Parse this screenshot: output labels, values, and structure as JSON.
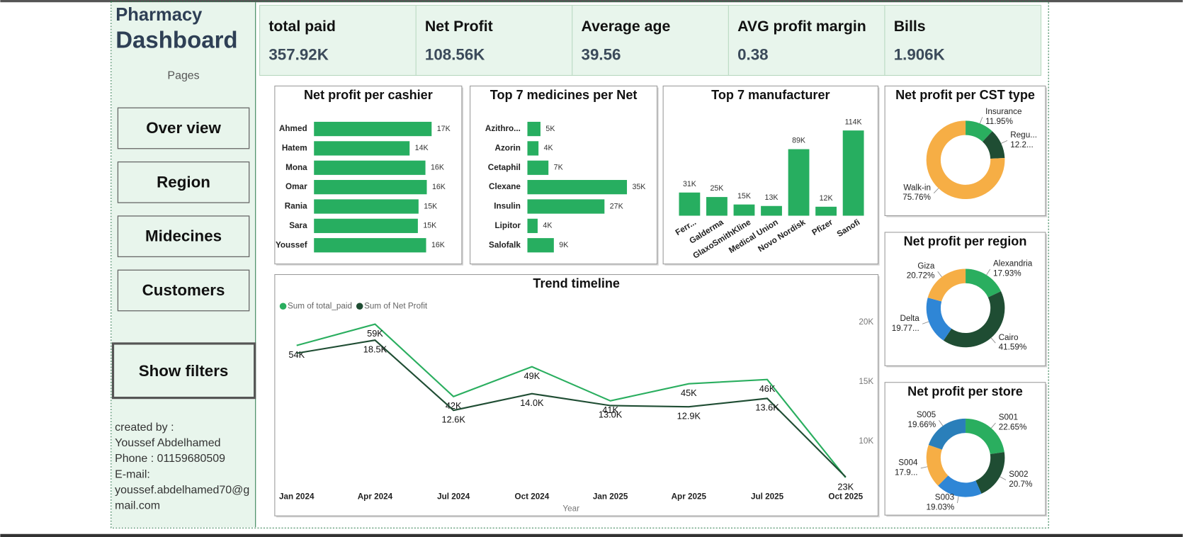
{
  "sidebar": {
    "title_line1": "Pharmacy",
    "title_line2": "Dashboard",
    "pages_label": "Pages",
    "pages": [
      "Over view",
      "Region",
      "Midecines",
      "Customers"
    ],
    "filters_button": "Show filters",
    "credits": [
      "created by :",
      "Youssef Abdelhamed",
      "Phone : 01159680509",
      "E-mail:",
      "youssef.abdelhamed70@g",
      "mail.com"
    ]
  },
  "kpis": [
    {
      "label": "total paid",
      "value": "357.92K"
    },
    {
      "label": "Net Profit",
      "value": "108.56K"
    },
    {
      "label": "Average age",
      "value": "39.56"
    },
    {
      "label": "AVG profit margin",
      "value": "0.38"
    },
    {
      "label": "Bills",
      "value": "1.906K"
    }
  ],
  "chart_data": [
    {
      "type": "bar",
      "orientation": "horizontal",
      "title": "Net profit per cashier",
      "color": "#27ae60",
      "categories": [
        "Ahmed",
        "Hatem",
        "Mona",
        "Omar",
        "Rania",
        "Sara",
        "Youssef"
      ],
      "values": [
        17100,
        13900,
        16200,
        16400,
        15200,
        15100,
        16300
      ],
      "value_labels": [
        "17K",
        "14K",
        "16K",
        "16K",
        "15K",
        "15K",
        "16K"
      ]
    },
    {
      "type": "bar",
      "orientation": "horizontal",
      "title": "Top 7 medicines per Net",
      "color": "#27ae60",
      "categories": [
        "Azithro...",
        "Azorin",
        "Cetaphil",
        "Clexane",
        "Insulin",
        "Lipitor",
        "Salofalk"
      ],
      "values": [
        4600,
        3900,
        7400,
        35000,
        27100,
        3600,
        9300
      ],
      "value_labels": [
        "5K",
        "4K",
        "7K",
        "35K",
        "27K",
        "4K",
        "9K"
      ]
    },
    {
      "type": "bar",
      "orientation": "vertical",
      "title": "Top 7 manufacturer",
      "color": "#27ae60",
      "categories": [
        "Ferr...",
        "Galderma",
        "GlaxoSmithKline",
        "Medical Union",
        "Novo Nordisk",
        "Pfizer",
        "Sanofi"
      ],
      "values": [
        31000,
        25000,
        15000,
        13000,
        89000,
        12000,
        114000
      ],
      "value_labels": [
        "31K",
        "25K",
        "15K",
        "13K",
        "89K",
        "12K",
        "114K"
      ]
    },
    {
      "type": "donut",
      "title": "Net profit per CST type",
      "categories": [
        "Insurance",
        "Regu...",
        "Walk-in"
      ],
      "values": [
        11.95,
        12.29,
        75.76
      ],
      "value_labels": [
        "11.95%",
        "12.2...",
        "75.76%"
      ],
      "colors": [
        "#2aae5f",
        "#1f4d33",
        "#f6ae45"
      ]
    },
    {
      "type": "donut",
      "title": "Net profit per region",
      "categories": [
        "Alexandria",
        "Cairo",
        "Delta",
        "Giza"
      ],
      "values": [
        17.93,
        41.59,
        19.77,
        20.72
      ],
      "value_labels": [
        "17.93%",
        "41.59%",
        "19.77...",
        "20.72%"
      ],
      "colors": [
        "#2aae5f",
        "#1f4d33",
        "#2f86d6",
        "#f6ae45"
      ]
    },
    {
      "type": "donut",
      "title": "Net profit per store",
      "categories": [
        "S001",
        "S002",
        "S003",
        "S004",
        "S005"
      ],
      "values": [
        22.65,
        20.7,
        19.03,
        17.96,
        19.66
      ],
      "value_labels": [
        "22.65%",
        "20.7%",
        "19.03%",
        "17.9...",
        "19.66%"
      ],
      "colors": [
        "#2aae5f",
        "#1f4d33",
        "#2f86d6",
        "#f6ae45",
        "#2a7fba"
      ]
    },
    {
      "type": "line",
      "title": "Trend timeline",
      "x_label": "Year",
      "categories": [
        "Jan 2024",
        "Apr 2024",
        "Jul 2024",
        "Oct 2024",
        "Jan 2025",
        "Apr 2025",
        "Jul 2025",
        "Oct 2025"
      ],
      "ylim": [
        20900,
        62500
      ],
      "y2lim": [
        6200,
        21100
      ],
      "y2ticks": [
        {
          "value": 10000,
          "label": "10K"
        },
        {
          "value": 15000,
          "label": "15K"
        },
        {
          "value": 20000,
          "label": "20K"
        }
      ],
      "series": [
        {
          "name": "Sum of total_paid",
          "color": "#2aae5f",
          "values": [
            54000,
            59000,
            42000,
            49000,
            41000,
            45000,
            46000,
            23000
          ],
          "value_labels": [
            "54K",
            "59K",
            "42K",
            "49K",
            "41K",
            "45K",
            "46K",
            "23K"
          ]
        },
        {
          "name": "Sum of Net Profit",
          "color": "#1f4d33",
          "axis": "y2",
          "values": [
            17400,
            18500,
            12600,
            14000,
            13000,
            12900,
            13600,
            7000
          ],
          "value_labels": [
            null,
            "18.5K",
            "12.6K",
            "14.0K",
            "13.0K",
            "12.9K",
            "13.6K",
            null
          ]
        }
      ]
    }
  ]
}
